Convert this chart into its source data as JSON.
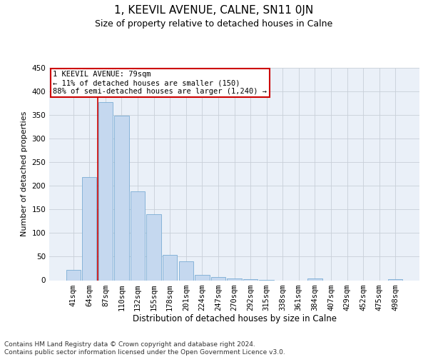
{
  "title": "1, KEEVIL AVENUE, CALNE, SN11 0JN",
  "subtitle": "Size of property relative to detached houses in Calne",
  "xlabel": "Distribution of detached houses by size in Calne",
  "ylabel": "Number of detached properties",
  "bar_color": "#c5d8ef",
  "bar_edgecolor": "#7aadd4",
  "categories": [
    "41sqm",
    "64sqm",
    "87sqm",
    "110sqm",
    "132sqm",
    "155sqm",
    "178sqm",
    "201sqm",
    "224sqm",
    "247sqm",
    "270sqm",
    "292sqm",
    "315sqm",
    "338sqm",
    "361sqm",
    "384sqm",
    "407sqm",
    "429sqm",
    "452sqm",
    "475sqm",
    "498sqm"
  ],
  "values": [
    22,
    218,
    378,
    348,
    188,
    140,
    54,
    40,
    11,
    7,
    4,
    3,
    1,
    0,
    0,
    4,
    0,
    0,
    0,
    0,
    3
  ],
  "ylim": [
    0,
    450
  ],
  "yticks": [
    0,
    50,
    100,
    150,
    200,
    250,
    300,
    350,
    400,
    450
  ],
  "property_line_x": 1.5,
  "annotation_text": "1 KEEVIL AVENUE: 79sqm\n← 11% of detached houses are smaller (150)\n88% of semi-detached houses are larger (1,240) →",
  "footer_text": "Contains HM Land Registry data © Crown copyright and database right 2024.\nContains public sector information licensed under the Open Government Licence v3.0.",
  "bg_color": "#eaf0f8",
  "grid_color": "#c8cfd8",
  "annotation_box_color": "#ffffff",
  "annotation_box_edgecolor": "#cc0000",
  "property_line_color": "#cc0000",
  "title_fontsize": 11,
  "subtitle_fontsize": 9,
  "ylabel_fontsize": 8,
  "xlabel_fontsize": 8.5,
  "tick_fontsize": 7.5,
  "annotation_fontsize": 7.5,
  "footer_fontsize": 6.5
}
